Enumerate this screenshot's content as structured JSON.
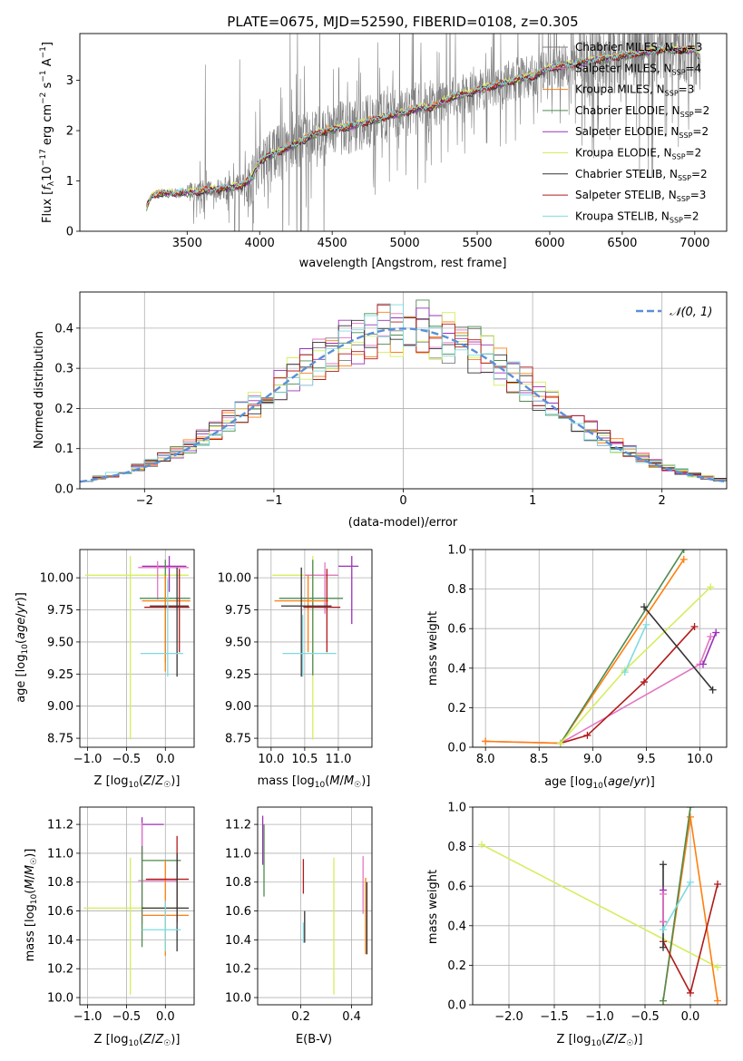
{
  "chart_data": [
    {
      "id": "spectrum",
      "type": "line",
      "title": "PLATE=0675, MJD=52590, FIBERID=0108, z=0.305",
      "xlabel": "wavelength [Angstrom, rest frame]",
      "ylabel": "Flux [f_λ 10^-17 erg cm^-2 s^-1 A^-1]",
      "xlim": [
        2760,
        7220
      ],
      "ylim": [
        0,
        3.93
      ],
      "xticks": [
        3500,
        4000,
        4500,
        5000,
        5500,
        6000,
        6500,
        7000
      ],
      "yticks": [
        0,
        1,
        2,
        3
      ],
      "data_color": "#808080",
      "model_anchor_points": [
        [
          3220,
          0.5
        ],
        [
          3260,
          0.73
        ],
        [
          3300,
          0.74
        ],
        [
          3400,
          0.76
        ],
        [
          3500,
          0.77
        ],
        [
          3700,
          0.84
        ],
        [
          3800,
          0.86
        ],
        [
          3900,
          0.95
        ],
        [
          3950,
          1.08
        ],
        [
          4000,
          1.4
        ],
        [
          4100,
          1.55
        ],
        [
          4200,
          1.67
        ],
        [
          4300,
          1.82
        ],
        [
          4400,
          1.96
        ],
        [
          4500,
          2.02
        ],
        [
          4600,
          2.07
        ],
        [
          4800,
          2.22
        ],
        [
          4900,
          2.3
        ],
        [
          5000,
          2.36
        ],
        [
          5100,
          2.45
        ],
        [
          5200,
          2.47
        ],
        [
          5300,
          2.65
        ],
        [
          5500,
          2.8
        ],
        [
          5700,
          2.96
        ],
        [
          5900,
          3.1
        ],
        [
          6000,
          3.24
        ],
        [
          6200,
          3.35
        ],
        [
          6400,
          3.44
        ],
        [
          6600,
          3.53
        ],
        [
          6800,
          3.62
        ],
        [
          7000,
          3.6
        ],
        [
          7030,
          3.47
        ]
      ],
      "series": [
        {
          "name": "Chabrier MILES, N_SSP=3",
          "label_main": "Chabrier MILES, N",
          "label_sub": "SSP",
          "label_end": "=3",
          "color": "#7f7f7f"
        },
        {
          "name": "Salpeter MILES, N_SSP=4",
          "label_main": "Salpeter MILES, N",
          "label_sub": "SSP",
          "label_end": "=4",
          "color": "#e377c2"
        },
        {
          "name": "Kroupa MILES, N_SSP=3",
          "label_main": "Kroupa MILES, N",
          "label_sub": "SSP",
          "label_end": "=3",
          "color": "#ff7f0e"
        },
        {
          "name": "Chabrier ELODIE, N_SSP=2",
          "label_main": "Chabrier ELODIE, N",
          "label_sub": "SSP",
          "label_end": "=2",
          "color": "#4f8a4f"
        },
        {
          "name": "Salpeter ELODIE, N_SSP=2",
          "label_main": "Salpeter ELODIE, N",
          "label_sub": "SSP",
          "label_end": "=2",
          "color": "#9b30b8"
        },
        {
          "name": "Kroupa ELODIE, N_SSP=2",
          "label_main": "Kroupa ELODIE, N",
          "label_sub": "SSP",
          "label_end": "=2",
          "color": "#d4ee5e"
        },
        {
          "name": "Chabrier STELIB, N_SSP=2",
          "label_main": "Chabrier STELIB, N",
          "label_sub": "SSP",
          "label_end": "=2",
          "color": "#333333"
        },
        {
          "name": "Salpeter STELIB, N_SSP=3",
          "label_main": "Salpeter STELIB, N",
          "label_sub": "SSP",
          "label_end": "=3",
          "color": "#b21a1a"
        },
        {
          "name": "Kroupa STELIB, N_SSP=2",
          "label_main": "Kroupa STELIB, N",
          "label_sub": "SSP",
          "label_end": "=2",
          "color": "#7fdbe0"
        }
      ]
    },
    {
      "id": "residuals",
      "type": "histogram",
      "xlabel": "(data-model)/error",
      "ylabel": "Normed distribution",
      "xlim": [
        -2.5,
        2.5
      ],
      "ylim": [
        0,
        0.49
      ],
      "xticks": [
        -2,
        -1,
        0,
        1,
        2
      ],
      "yticks": [
        0.0,
        0.1,
        0.2,
        0.3,
        0.4
      ],
      "reference_curve": {
        "name": "N(0,1)",
        "label": "𝒩(0, 1)",
        "color": "#5b8fd6",
        "style": "dashed"
      },
      "bin_width": 0.1,
      "bins_from": -2.5,
      "bins_to": 2.5,
      "series_colors": [
        "#7f7f7f",
        "#e377c2",
        "#ff7f0e",
        "#4f8a4f",
        "#9b30b8",
        "#d4ee5e",
        "#333333",
        "#b21a1a",
        "#7fdbe0"
      ],
      "example_peaks": {
        "highest_bar_x": 0.1,
        "highest_bar_y": 0.47
      }
    },
    {
      "id": "age_vs_Z",
      "type": "errorbar",
      "xlabel": "Z [log10(Z/Z_sun)]",
      "ylabel": "age [log10(age/yr)]",
      "xlim": [
        -1.1,
        0.37
      ],
      "ylim": [
        8.68,
        10.22
      ],
      "xticks": [
        -1.0,
        -0.5,
        0.0
      ],
      "yticks": [
        8.75,
        9.0,
        9.25,
        9.5,
        9.75,
        10.0
      ],
      "points": [
        {
          "color": "#d4ee5e",
          "x": -0.45,
          "xerr": [
            0.58,
            0.75
          ],
          "y": 10.02,
          "yerr": [
            1.28,
            0.15
          ]
        },
        {
          "color": "#9b30b8",
          "x": 0.05,
          "xerr": [
            0.35,
            0.22
          ],
          "y": 10.09,
          "yerr": [
            0.2,
            0.08
          ]
        },
        {
          "color": "#e377c2",
          "x": -0.1,
          "xerr": [
            0.25,
            0.4
          ],
          "y": 10.08,
          "yerr": [
            0.25,
            0.05
          ]
        },
        {
          "color": "#4f8a4f",
          "x": 0.0,
          "xerr": [
            0.33,
            0.32
          ],
          "y": 9.84,
          "yerr": [
            0.5,
            0.3
          ]
        },
        {
          "color": "#ff7f0e",
          "x": 0.0,
          "xerr": [
            0.3,
            0.32
          ],
          "y": 9.82,
          "yerr": [
            0.55,
            0.2
          ]
        },
        {
          "color": "#b21a1a",
          "x": 0.18,
          "xerr": [
            0.45,
            0.13
          ],
          "y": 9.77,
          "yerr": [
            0.35,
            0.3
          ]
        },
        {
          "color": "#333333",
          "x": 0.15,
          "xerr": [
            0.35,
            0.15
          ],
          "y": 9.78,
          "yerr": [
            0.55,
            0.3
          ]
        },
        {
          "color": "#7fdbe0",
          "x": 0.03,
          "xerr": [
            0.35,
            0.2
          ],
          "y": 9.41,
          "yerr": [
            0.18,
            0.58
          ]
        }
      ]
    },
    {
      "id": "age_vs_mass",
      "type": "errorbar",
      "xlabel": "mass [log10(M/M_sun)]",
      "ylabel": "",
      "xlim": [
        9.8,
        11.5
      ],
      "ylim": [
        8.68,
        10.22
      ],
      "xticks": [
        10.0,
        10.5,
        11.0
      ],
      "yticks": [
        8.75,
        9.0,
        9.25,
        9.5,
        9.75,
        10.0
      ],
      "points": [
        {
          "color": "#d4ee5e",
          "x": 10.62,
          "xerr": [
            0.6,
            0.35
          ],
          "y": 10.02,
          "yerr": [
            1.28,
            0.15
          ]
        },
        {
          "color": "#9b30b8",
          "x": 11.2,
          "xerr": [
            0.2,
            0.1
          ],
          "y": 10.09,
          "yerr": [
            0.45,
            0.08
          ]
        },
        {
          "color": "#e377c2",
          "x": 10.8,
          "xerr": [
            0.3,
            0.2
          ],
          "y": 10.02,
          "yerr": [
            0.3,
            0.1
          ]
        },
        {
          "color": "#4f8a4f",
          "x": 10.62,
          "xerr": [
            0.5,
            0.45
          ],
          "y": 9.84,
          "yerr": [
            0.6,
            0.3
          ]
        },
        {
          "color": "#ff7f0e",
          "x": 10.55,
          "xerr": [
            0.5,
            0.3
          ],
          "y": 9.82,
          "yerr": [
            0.4,
            0.2
          ]
        },
        {
          "color": "#b21a1a",
          "x": 10.83,
          "xerr": [
            0.35,
            0.2
          ],
          "y": 9.77,
          "yerr": [
            0.35,
            0.3
          ]
        },
        {
          "color": "#333333",
          "x": 10.45,
          "xerr": [
            0.3,
            0.45
          ],
          "y": 9.78,
          "yerr": [
            0.55,
            0.3
          ]
        },
        {
          "color": "#7fdbe0",
          "x": 10.47,
          "xerr": [
            0.3,
            0.5
          ],
          "y": 9.41,
          "yerr": [
            0.18,
            0.3
          ]
        }
      ]
    },
    {
      "id": "massweight_vs_age",
      "type": "line",
      "xlabel": "age [log10(age/yr)]",
      "ylabel": "mass weight",
      "xlim": [
        7.88,
        10.25
      ],
      "ylim": [
        0,
        1.0
      ],
      "xticks": [
        8.0,
        8.5,
        9.0,
        9.5,
        10.0
      ],
      "yticks": [
        0.0,
        0.2,
        0.4,
        0.6,
        0.8,
        1.0
      ],
      "series": [
        {
          "color": "#e377c2",
          "points": [
            [
              8.0,
              0.03
            ],
            [
              8.7,
              0.02
            ],
            [
              10.0,
              0.42
            ],
            [
              10.1,
              0.56
            ]
          ]
        },
        {
          "color": "#b21a1a",
          "points": [
            [
              8.7,
              0.02
            ],
            [
              8.95,
              0.06
            ],
            [
              9.48,
              0.33
            ],
            [
              9.95,
              0.61
            ]
          ]
        },
        {
          "color": "#ff7f0e",
          "points": [
            [
              8.0,
              0.03
            ],
            [
              8.7,
              0.02
            ],
            [
              9.85,
              0.95
            ]
          ]
        },
        {
          "color": "#4f8a4f",
          "points": [
            [
              8.7,
              0.02
            ],
            [
              9.85,
              1.0
            ]
          ]
        },
        {
          "color": "#9b30b8",
          "points": [
            [
              10.03,
              0.42
            ],
            [
              10.15,
              0.58
            ]
          ]
        },
        {
          "color": "#d4ee5e",
          "points": [
            [
              8.7,
              0.02
            ],
            [
              9.3,
              0.39
            ],
            [
              10.1,
              0.81
            ]
          ]
        },
        {
          "color": "#333333",
          "points": [
            [
              9.48,
              0.71
            ],
            [
              10.12,
              0.29
            ]
          ]
        },
        {
          "color": "#7fdbe0",
          "points": [
            [
              9.3,
              0.38
            ],
            [
              9.5,
              0.62
            ]
          ]
        }
      ]
    },
    {
      "id": "mass_vs_Z",
      "type": "errorbar",
      "xlabel": "Z [log10(Z/Z_sun)]",
      "ylabel": "mass [log10(M/M_sun)]",
      "xlim": [
        -1.1,
        0.37
      ],
      "ylim": [
        9.95,
        11.32
      ],
      "xticks": [
        -1.0,
        -0.5,
        0.0
      ],
      "yticks": [
        10.0,
        10.2,
        10.4,
        10.6,
        10.8,
        11.0,
        11.2
      ],
      "points": [
        {
          "color": "#d4ee5e",
          "x": -0.45,
          "xerr": [
            0.6,
            0.7
          ],
          "y": 10.62,
          "yerr": [
            0.6,
            0.35
          ]
        },
        {
          "color": "#9b30b8",
          "x": -0.3,
          "xerr": [
            0.0,
            0.28
          ],
          "y": 11.2,
          "yerr": [
            0.25,
            0.05
          ]
        },
        {
          "color": "#e377c2",
          "x": -0.3,
          "xerr": [
            0.05,
            0.45
          ],
          "y": 10.81,
          "yerr": [
            0.3,
            0.4
          ]
        },
        {
          "color": "#4f8a4f",
          "x": -0.3,
          "xerr": [
            0.0,
            0.5
          ],
          "y": 10.95,
          "yerr": [
            0.6,
            0.1
          ]
        },
        {
          "color": "#ff7f0e",
          "x": 0.0,
          "xerr": [
            0.3,
            0.3
          ],
          "y": 10.57,
          "yerr": [
            0.28,
            0.38
          ]
        },
        {
          "color": "#b21a1a",
          "x": 0.15,
          "xerr": [
            0.4,
            0.15
          ],
          "y": 10.82,
          "yerr": [
            0.3,
            0.3
          ]
        },
        {
          "color": "#333333",
          "x": 0.15,
          "xerr": [
            0.45,
            0.15
          ],
          "y": 10.62,
          "yerr": [
            0.3,
            0.38
          ]
        },
        {
          "color": "#7fdbe0",
          "x": 0.0,
          "xerr": [
            0.3,
            0.2
          ],
          "y": 10.47,
          "yerr": [
            0.15,
            0.2
          ]
        }
      ]
    },
    {
      "id": "mass_vs_EBV",
      "type": "errorbar",
      "xlabel": "E(B-V)",
      "ylabel": "",
      "xlim": [
        0.03,
        0.48
      ],
      "ylim": [
        9.95,
        11.32
      ],
      "xticks": [
        0.2,
        0.4
      ],
      "yticks": [
        10.0,
        10.2,
        10.4,
        10.6,
        10.8,
        11.0,
        11.2
      ],
      "points": [
        {
          "color": "#9b30b8",
          "x": 0.05,
          "yerr": [
            10.92,
            11.26
          ]
        },
        {
          "color": "#4f8a4f",
          "x": 0.055,
          "yerr": [
            10.7,
            11.2
          ]
        },
        {
          "color": "#b21a1a",
          "x": 0.21,
          "yerr": [
            10.72,
            10.96
          ]
        },
        {
          "color": "#333333",
          "x": 0.215,
          "yerr": [
            10.38,
            10.6
          ]
        },
        {
          "color": "#7fdbe0",
          "x": 0.21,
          "yerr": [
            10.38,
            10.52
          ]
        },
        {
          "color": "#d4ee5e",
          "x": 0.33,
          "yerr": [
            10.02,
            10.97
          ]
        },
        {
          "color": "#e377c2",
          "x": 0.445,
          "yerr": [
            10.58,
            10.98
          ]
        },
        {
          "color": "#ff7f0e",
          "x": 0.455,
          "yerr": [
            10.3,
            10.83
          ]
        },
        {
          "color": "#333333",
          "x": 0.46,
          "yerr": [
            10.3,
            10.8
          ]
        }
      ]
    },
    {
      "id": "massweight_vs_Z",
      "type": "line",
      "xlabel": "Z [log10(Z/Z_sun)]",
      "ylabel": "mass weight",
      "xlim": [
        -2.4,
        0.4
      ],
      "ylim": [
        0,
        1.0
      ],
      "xticks": [
        -2.0,
        -1.5,
        -1.0,
        -0.5,
        0.0
      ],
      "yticks": [
        0.0,
        0.2,
        0.4,
        0.6,
        0.8,
        1.0
      ],
      "series": [
        {
          "color": "#d4ee5e",
          "points": [
            [
              -2.3,
              0.81
            ],
            [
              0.3,
              0.19
            ]
          ]
        },
        {
          "color": "#ff7f0e",
          "points": [
            [
              -0.3,
              0.02
            ],
            [
              0.0,
              0.95
            ],
            [
              0.3,
              0.02
            ]
          ]
        },
        {
          "color": "#4f8a4f",
          "points": [
            [
              -0.3,
              0.02
            ],
            [
              0.0,
              1.0
            ]
          ]
        },
        {
          "color": "#b21a1a",
          "points": [
            [
              -0.3,
              0.32
            ],
            [
              0.0,
              0.06
            ],
            [
              0.3,
              0.61
            ]
          ]
        },
        {
          "color": "#333333",
          "points": [
            [
              -0.3,
              0.71
            ],
            [
              -0.3,
              0.29
            ]
          ]
        },
        {
          "color": "#9b30b8",
          "points": [
            [
              -0.3,
              0.42
            ],
            [
              -0.3,
              0.58
            ]
          ]
        },
        {
          "color": "#e377c2",
          "points": [
            [
              -0.3,
              0.56
            ],
            [
              -0.3,
              0.42
            ]
          ]
        },
        {
          "color": "#7fdbe0",
          "points": [
            [
              -0.3,
              0.38
            ],
            [
              0.0,
              0.62
            ]
          ]
        }
      ]
    }
  ]
}
